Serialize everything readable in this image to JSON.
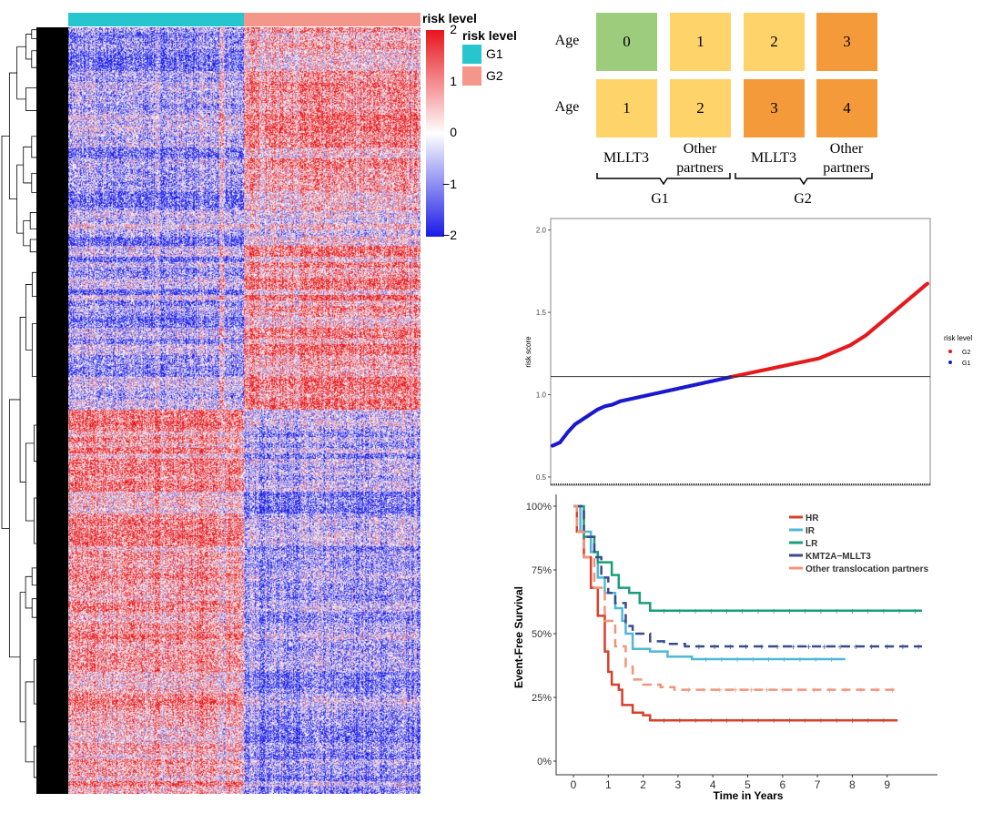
{
  "heatmap": {
    "annotation_title": "risk level",
    "legend_title": "risk level",
    "groups": [
      {
        "label": "G1",
        "color": "#27c6cf"
      },
      {
        "label": "G2",
        "color": "#f5968a"
      }
    ],
    "colorbar_ticks": [
      "2",
      "1",
      "0",
      "−1",
      "−2"
    ],
    "colorbar_colors": {
      "high": "#e8151b",
      "mid": "#ffffff",
      "low": "#1a1ae6"
    }
  },
  "grid": {
    "row_labels": [
      "Age",
      "Age"
    ],
    "rows": [
      [
        {
          "v": "0",
          "color": "#9ccc7c"
        },
        {
          "v": "1",
          "color": "#fdd36a"
        },
        {
          "v": "2",
          "color": "#fdd36a"
        },
        {
          "v": "3",
          "color": "#f59a3a"
        }
      ],
      [
        {
          "v": "1",
          "color": "#fdd36a"
        },
        {
          "v": "2",
          "color": "#fdd36a"
        },
        {
          "v": "3",
          "color": "#f59a3a"
        },
        {
          "v": "4",
          "color": "#f59a3a"
        }
      ]
    ],
    "col_labels": [
      "MLLT3",
      "Other partners",
      "MLLT3",
      "Other partners"
    ],
    "groups": [
      "G1",
      "G2"
    ]
  },
  "chart_data": [
    {
      "type": "scatter",
      "ylabel": "risk score",
      "yticks": [
        "0.5",
        "1.0",
        "1.5",
        "2.0"
      ],
      "ylim": [
        0.45,
        2.07
      ],
      "cutoff": 1.11,
      "legend_title": "risk level",
      "legend_position": "right",
      "series": [
        {
          "name": "G2",
          "color": "#e41a1c",
          "values": [
            1.11,
            1.12,
            1.13,
            1.14,
            1.15,
            1.16,
            1.17,
            1.18,
            1.19,
            1.2,
            1.21,
            1.22,
            1.24,
            1.26,
            1.28,
            1.3,
            1.33,
            1.36,
            1.4,
            1.44,
            1.48,
            1.52,
            1.56,
            1.6,
            1.64,
            1.68
          ]
        },
        {
          "name": "G1",
          "color": "#1a1acc",
          "values": [
            0.69,
            0.71,
            0.77,
            0.82,
            0.85,
            0.88,
            0.91,
            0.93,
            0.94,
            0.96,
            0.97,
            0.98,
            0.99,
            1.0,
            1.01,
            1.02,
            1.03,
            1.04,
            1.05,
            1.06,
            1.07,
            1.08,
            1.09,
            1.1,
            1.11
          ]
        }
      ]
    },
    {
      "type": "line",
      "xlabel": "Time in Years",
      "ylabel": "Event-Free Survival",
      "xticks": [
        "0",
        "1",
        "2",
        "3",
        "4",
        "5",
        "6",
        "7",
        "8",
        "9"
      ],
      "yticks": [
        "0%",
        "25%",
        "50%",
        "75%",
        "100%"
      ],
      "xlim": [
        0,
        10
      ],
      "ylim": [
        0,
        1
      ],
      "legend_position": "top-right",
      "series": [
        {
          "name": "HR",
          "color": "#d7402b",
          "dashed": false,
          "points": [
            [
              0,
              1
            ],
            [
              0.1,
              0.9
            ],
            [
              0.3,
              0.8
            ],
            [
              0.5,
              0.68
            ],
            [
              0.7,
              0.57
            ],
            [
              0.9,
              0.43
            ],
            [
              1.0,
              0.35
            ],
            [
              1.1,
              0.3
            ],
            [
              1.3,
              0.28
            ],
            [
              1.4,
              0.22
            ],
            [
              1.7,
              0.19
            ],
            [
              2.0,
              0.18
            ],
            [
              2.2,
              0.16
            ],
            [
              9.3,
              0.16
            ]
          ]
        },
        {
          "name": "IR",
          "color": "#4fb8d6",
          "dashed": false,
          "points": [
            [
              0,
              1
            ],
            [
              0.2,
              0.9
            ],
            [
              0.5,
              0.82
            ],
            [
              0.7,
              0.72
            ],
            [
              0.9,
              0.66
            ],
            [
              1.2,
              0.6
            ],
            [
              1.4,
              0.55
            ],
            [
              1.5,
              0.5
            ],
            [
              1.7,
              0.44
            ],
            [
              2.2,
              0.43
            ],
            [
              2.7,
              0.41
            ],
            [
              3.4,
              0.4
            ],
            [
              7.8,
              0.4
            ]
          ]
        },
        {
          "name": "LR",
          "color": "#1a9e7a",
          "dashed": false,
          "points": [
            [
              0,
              1
            ],
            [
              0.3,
              0.88
            ],
            [
              0.6,
              0.82
            ],
            [
              0.7,
              0.78
            ],
            [
              1.1,
              0.73
            ],
            [
              1.3,
              0.68
            ],
            [
              1.6,
              0.66
            ],
            [
              1.9,
              0.62
            ],
            [
              2.2,
              0.59
            ],
            [
              10,
              0.59
            ]
          ]
        },
        {
          "name": "KMT2A−MLLT3",
          "color": "#3a4a8c",
          "dashed": true,
          "points": [
            [
              0,
              1
            ],
            [
              0.3,
              0.88
            ],
            [
              0.6,
              0.8
            ],
            [
              0.8,
              0.72
            ],
            [
              1.0,
              0.66
            ],
            [
              1.2,
              0.62
            ],
            [
              1.5,
              0.53
            ],
            [
              1.7,
              0.5
            ],
            [
              2.2,
              0.47
            ],
            [
              2.6,
              0.46
            ],
            [
              3.2,
              0.45
            ],
            [
              10,
              0.45
            ]
          ]
        },
        {
          "name": "Other translocation partners",
          "color": "#f0957a",
          "dashed": true,
          "points": [
            [
              0,
              1
            ],
            [
              0.1,
              0.9
            ],
            [
              0.3,
              0.8
            ],
            [
              0.6,
              0.68
            ],
            [
              0.9,
              0.55
            ],
            [
              1.2,
              0.45
            ],
            [
              1.5,
              0.37
            ],
            [
              1.7,
              0.32
            ],
            [
              2.0,
              0.3
            ],
            [
              2.5,
              0.29
            ],
            [
              2.9,
              0.28
            ],
            [
              9.3,
              0.28
            ]
          ]
        }
      ]
    }
  ]
}
